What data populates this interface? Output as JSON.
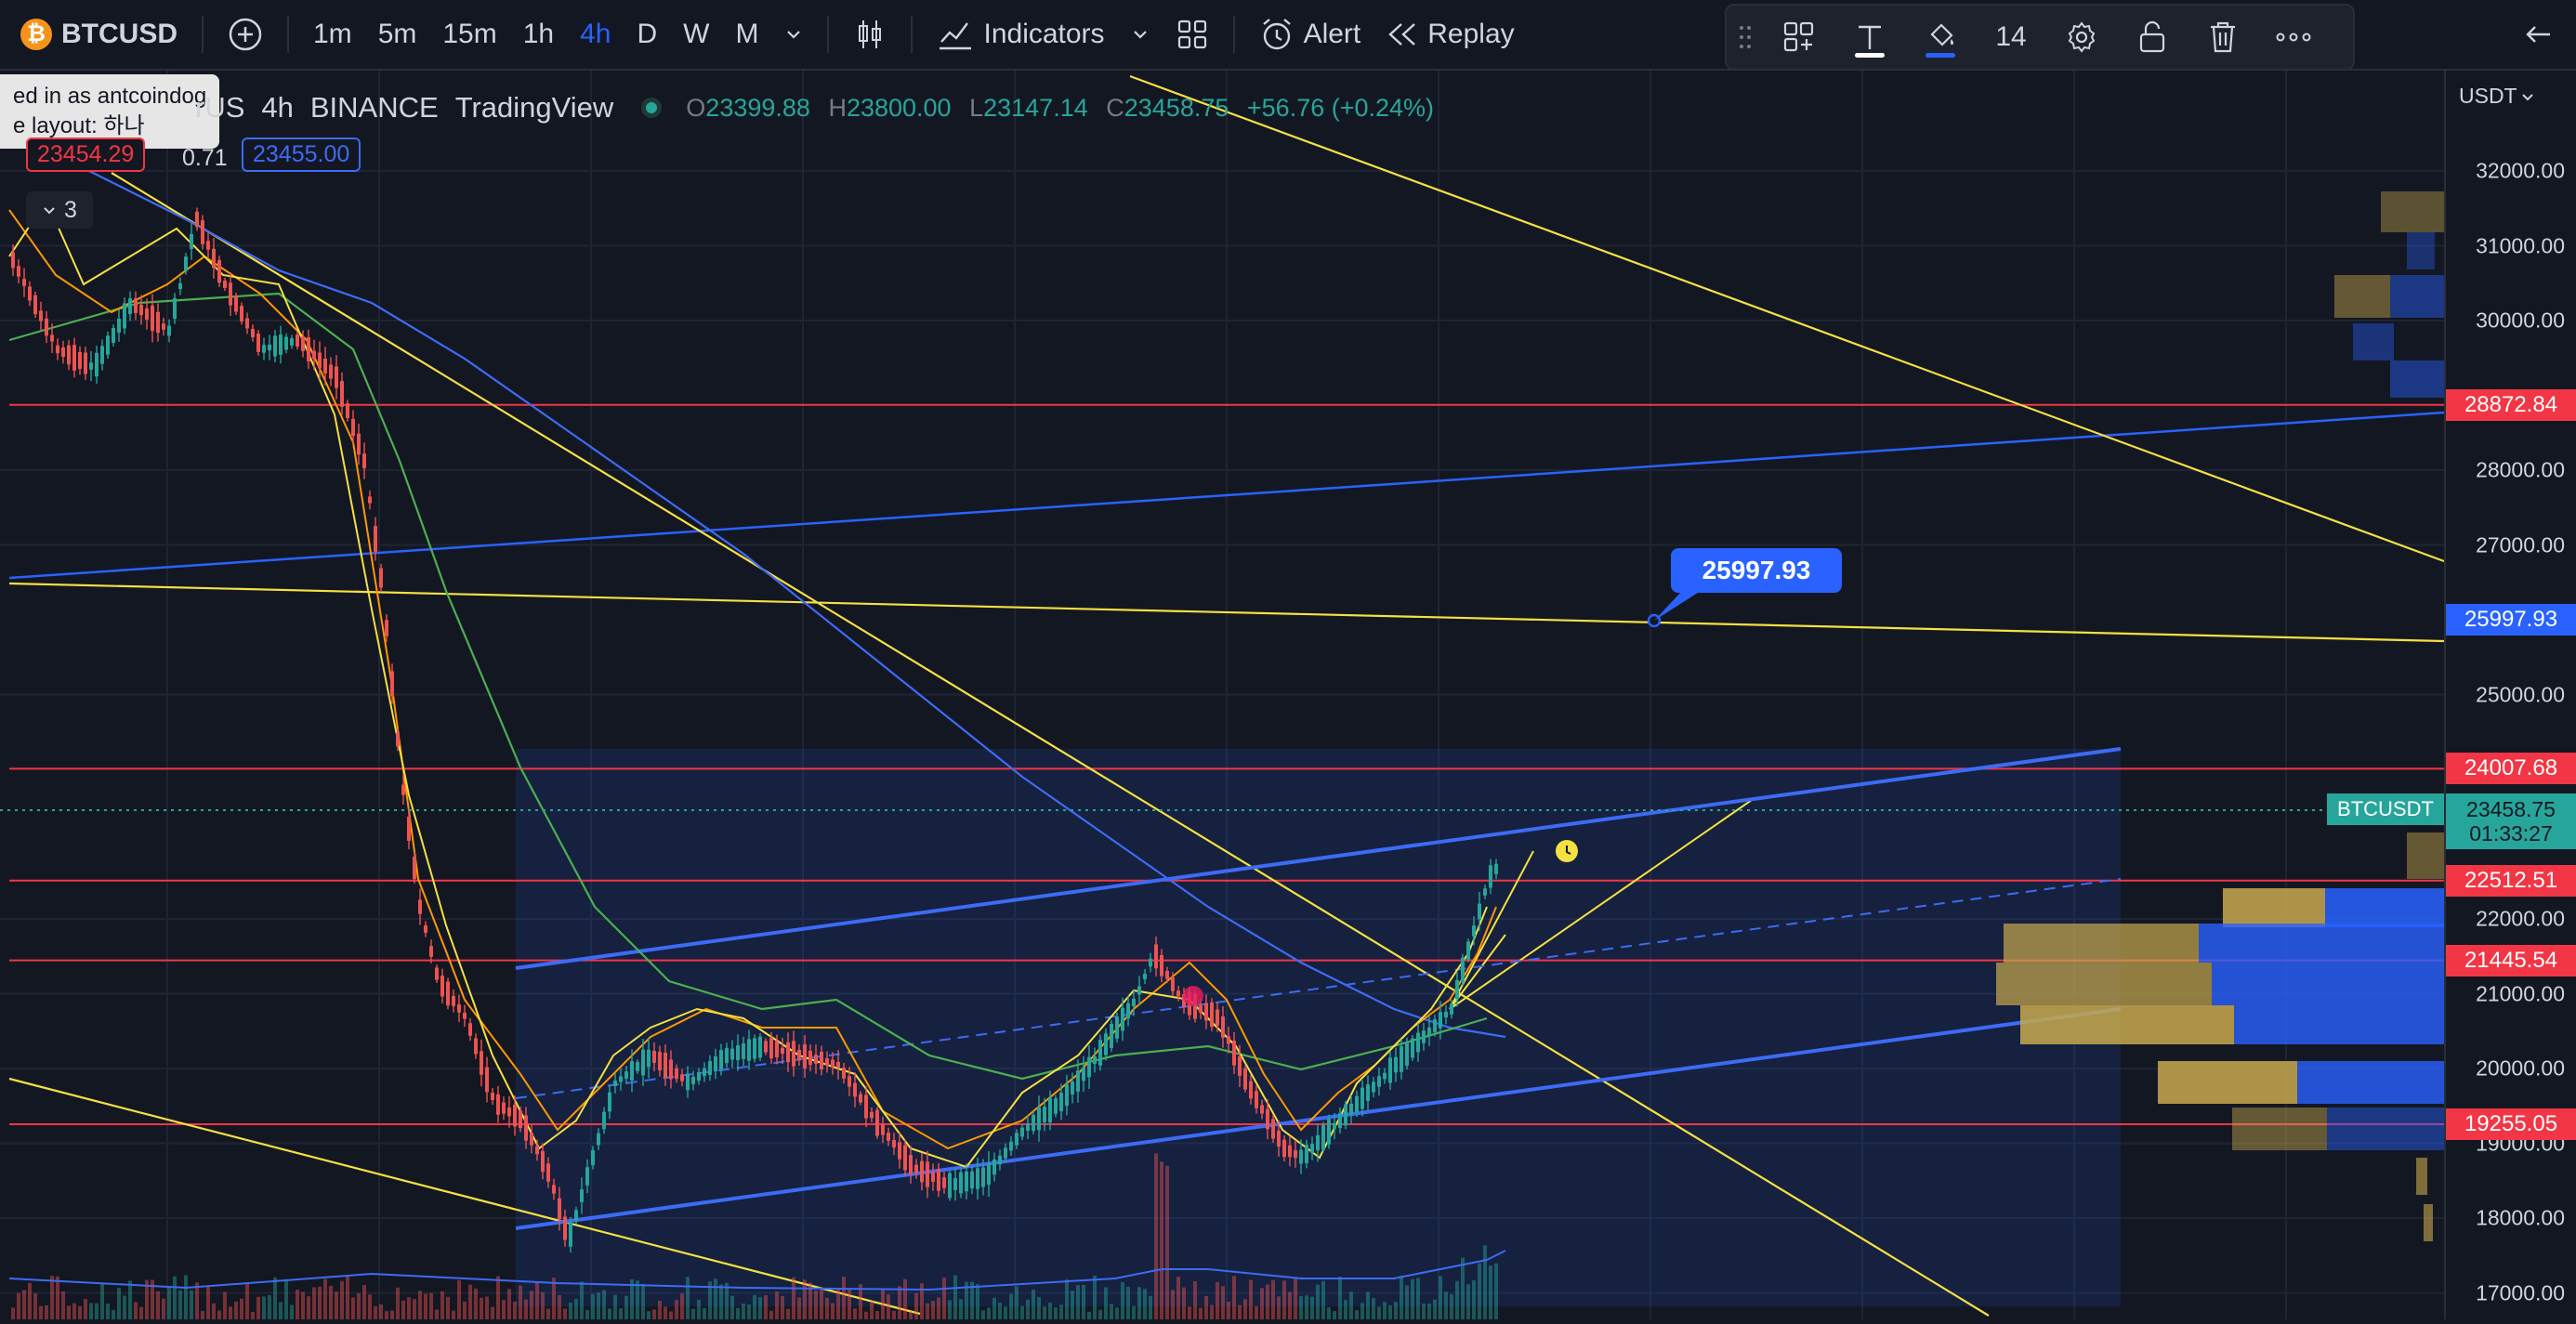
{
  "toolbar": {
    "symbol": "BTCUSD",
    "coin_glyph": "₿",
    "intervals": [
      "1m",
      "5m",
      "15m",
      "1h",
      "4h",
      "D",
      "W",
      "M"
    ],
    "active_interval": "4h",
    "indicators_label": "Indicators",
    "alert_label": "Alert",
    "replay_label": "Replay"
  },
  "drawing_toolbar": {
    "line_width": "14"
  },
  "tooltip": {
    "line1": "ed in as antcoindog",
    "line2": "e layout: 하나"
  },
  "legend": {
    "title_fragment": "rUS",
    "interval": "4h",
    "exchange": "BINANCE",
    "source": "TradingView",
    "open_label": "O",
    "open": "23399.88",
    "high_label": "H",
    "high": "23800.00",
    "low_label": "L",
    "low": "23147.14",
    "close_label": "C",
    "close": "23458.75",
    "change": "+56.76 (+0.24%)",
    "bid": "23454.29",
    "spread": "0.71",
    "ask": "23455.00",
    "collapse_count": "3"
  },
  "price_axis": {
    "currency": "USDT",
    "ticks": [
      {
        "label": "32000.00",
        "value": 32000
      },
      {
        "label": "31000.00",
        "value": 31000
      },
      {
        "label": "30000.00",
        "value": 30000
      },
      {
        "label": "28000.00",
        "value": 28000
      },
      {
        "label": "27000.00",
        "value": 27000
      },
      {
        "label": "25000.00",
        "value": 25000
      },
      {
        "label": "22000.00",
        "value": 22000
      },
      {
        "label": "21000.00",
        "value": 21000
      },
      {
        "label": "20000.00",
        "value": 20000
      },
      {
        "label": "19000.00",
        "value": 19000
      },
      {
        "label": "18000.00",
        "value": 18000
      },
      {
        "label": "17000.00",
        "value": 17000
      }
    ],
    "levels": [
      {
        "label": "28872.84",
        "value": 28872.84,
        "color": "#f23645"
      },
      {
        "label": "25997.93",
        "value": 25997.93,
        "color": "#2962ff"
      },
      {
        "label": "24007.68",
        "value": 24007.68,
        "color": "#f23645"
      },
      {
        "label": "22512.51",
        "value": 22512.51,
        "color": "#f23645"
      },
      {
        "label": "21445.54",
        "value": 21445.54,
        "color": "#f23645"
      },
      {
        "label": "19255.05",
        "value": 19255.05,
        "color": "#f23645"
      }
    ],
    "last_price": "23458.75",
    "countdown": "01:33:27",
    "last_symbol": "BTCUSDT"
  },
  "callout": {
    "label": "25997.93"
  },
  "colors": {
    "background": "#131722",
    "bull": "#26a69a",
    "bear": "#ef5350",
    "accent": "#2962ff",
    "trendline": "#f5e042",
    "level_line": "#f23645"
  }
}
